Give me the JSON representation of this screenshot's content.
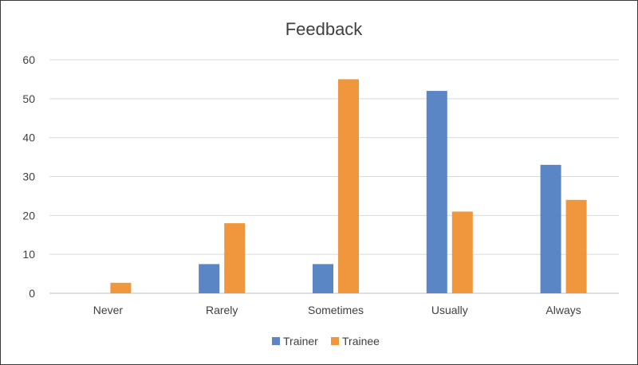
{
  "chart_data": {
    "type": "bar",
    "title": "Feedback",
    "categories": [
      "Never",
      "Rarely",
      "Sometimes",
      "Usually",
      "Always"
    ],
    "series": [
      {
        "name": "Trainer",
        "color": "#5b86c5",
        "values": [
          0,
          7.5,
          7.5,
          52,
          33
        ]
      },
      {
        "name": "Trainee",
        "color": "#f0963d",
        "values": [
          2.7,
          18,
          55,
          21,
          24
        ]
      }
    ],
    "ylim": [
      0,
      60
    ],
    "yticks": [
      "0",
      "10",
      "20",
      "30",
      "40",
      "50",
      "60"
    ],
    "grid": true,
    "legend": "bottom"
  }
}
